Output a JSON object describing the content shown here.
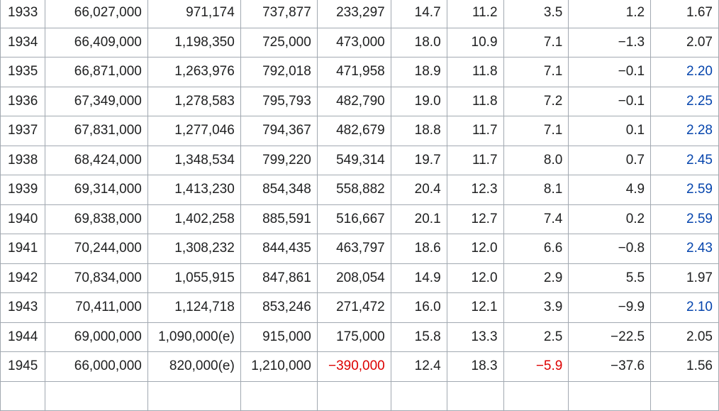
{
  "colors": {
    "negative_highlight": "#dd0000",
    "link": "#0645ad",
    "border": "#a2a9b1",
    "text": "#202122"
  },
  "rows": [
    {
      "year": "1933",
      "population": "66,027,000",
      "live_births": "971,174",
      "deaths": "737,877",
      "natural_change": "233,297",
      "birth_rate": "14.7",
      "death_rate": "11.2",
      "natural_change_rate": "3.5",
      "col9": "1.2",
      "fertility": "1.67",
      "fertility_link": false,
      "natural_change_red": false,
      "natural_change_rate_red": false
    },
    {
      "year": "1934",
      "population": "66,409,000",
      "live_births": "1,198,350",
      "deaths": "725,000",
      "natural_change": "473,000",
      "birth_rate": "18.0",
      "death_rate": "10.9",
      "natural_change_rate": "7.1",
      "col9": "−1.3",
      "fertility": "2.07",
      "fertility_link": false,
      "natural_change_red": false,
      "natural_change_rate_red": false
    },
    {
      "year": "1935",
      "population": "66,871,000",
      "live_births": "1,263,976",
      "deaths": "792,018",
      "natural_change": "471,958",
      "birth_rate": "18.9",
      "death_rate": "11.8",
      "natural_change_rate": "7.1",
      "col9": "−0.1",
      "fertility": "2.20",
      "fertility_link": true,
      "natural_change_red": false,
      "natural_change_rate_red": false
    },
    {
      "year": "1936",
      "population": "67,349,000",
      "live_births": "1,278,583",
      "deaths": "795,793",
      "natural_change": "482,790",
      "birth_rate": "19.0",
      "death_rate": "11.8",
      "natural_change_rate": "7.2",
      "col9": "−0.1",
      "fertility": "2.25",
      "fertility_link": true,
      "natural_change_red": false,
      "natural_change_rate_red": false
    },
    {
      "year": "1937",
      "population": "67,831,000",
      "live_births": "1,277,046",
      "deaths": "794,367",
      "natural_change": "482,679",
      "birth_rate": "18.8",
      "death_rate": "11.7",
      "natural_change_rate": "7.1",
      "col9": "0.1",
      "fertility": "2.28",
      "fertility_link": true,
      "natural_change_red": false,
      "natural_change_rate_red": false
    },
    {
      "year": "1938",
      "population": "68,424,000",
      "live_births": "1,348,534",
      "deaths": "799,220",
      "natural_change": "549,314",
      "birth_rate": "19.7",
      "death_rate": "11.7",
      "natural_change_rate": "8.0",
      "col9": "0.7",
      "fertility": "2.45",
      "fertility_link": true,
      "natural_change_red": false,
      "natural_change_rate_red": false
    },
    {
      "year": "1939",
      "population": "69,314,000",
      "live_births": "1,413,230",
      "deaths": "854,348",
      "natural_change": "558,882",
      "birth_rate": "20.4",
      "death_rate": "12.3",
      "natural_change_rate": "8.1",
      "col9": "4.9",
      "fertility": "2.59",
      "fertility_link": true,
      "natural_change_red": false,
      "natural_change_rate_red": false
    },
    {
      "year": "1940",
      "population": "69,838,000",
      "live_births": "1,402,258",
      "deaths": "885,591",
      "natural_change": "516,667",
      "birth_rate": "20.1",
      "death_rate": "12.7",
      "natural_change_rate": "7.4",
      "col9": "0.2",
      "fertility": "2.59",
      "fertility_link": true,
      "natural_change_red": false,
      "natural_change_rate_red": false
    },
    {
      "year": "1941",
      "population": "70,244,000",
      "live_births": "1,308,232",
      "deaths": "844,435",
      "natural_change": "463,797",
      "birth_rate": "18.6",
      "death_rate": "12.0",
      "natural_change_rate": "6.6",
      "col9": "−0.8",
      "fertility": "2.43",
      "fertility_link": true,
      "natural_change_red": false,
      "natural_change_rate_red": false
    },
    {
      "year": "1942",
      "population": "70,834,000",
      "live_births": "1,055,915",
      "deaths": "847,861",
      "natural_change": "208,054",
      "birth_rate": "14.9",
      "death_rate": "12.0",
      "natural_change_rate": "2.9",
      "col9": "5.5",
      "fertility": "1.97",
      "fertility_link": false,
      "natural_change_red": false,
      "natural_change_rate_red": false
    },
    {
      "year": "1943",
      "population": "70,411,000",
      "live_births": "1,124,718",
      "deaths": "853,246",
      "natural_change": "271,472",
      "birth_rate": "16.0",
      "death_rate": "12.1",
      "natural_change_rate": "3.9",
      "col9": "−9.9",
      "fertility": "2.10",
      "fertility_link": true,
      "natural_change_red": false,
      "natural_change_rate_red": false
    },
    {
      "year": "1944",
      "population": "69,000,000",
      "live_births": "1,090,000(e)",
      "deaths": "915,000",
      "natural_change": "175,000",
      "birth_rate": "15.8",
      "death_rate": "13.3",
      "natural_change_rate": "2.5",
      "col9": "−22.5",
      "fertility": "2.05",
      "fertility_link": false,
      "natural_change_red": false,
      "natural_change_rate_red": false
    },
    {
      "year": "1945",
      "population": "66,000,000",
      "live_births": "820,000(e)",
      "deaths": "1,210,000",
      "natural_change": "−390,000",
      "birth_rate": "12.4",
      "death_rate": "18.3",
      "natural_change_rate": "−5.9",
      "col9": "−37.6",
      "fertility": "1.56",
      "fertility_link": false,
      "natural_change_red": true,
      "natural_change_rate_red": true
    },
    {
      "year": "",
      "population": "",
      "live_births": "",
      "deaths": "",
      "natural_change": "",
      "birth_rate": "",
      "death_rate": "",
      "natural_change_rate": "",
      "col9": "",
      "fertility": "",
      "fertility_link": false,
      "natural_change_red": false,
      "natural_change_rate_red": false
    }
  ]
}
